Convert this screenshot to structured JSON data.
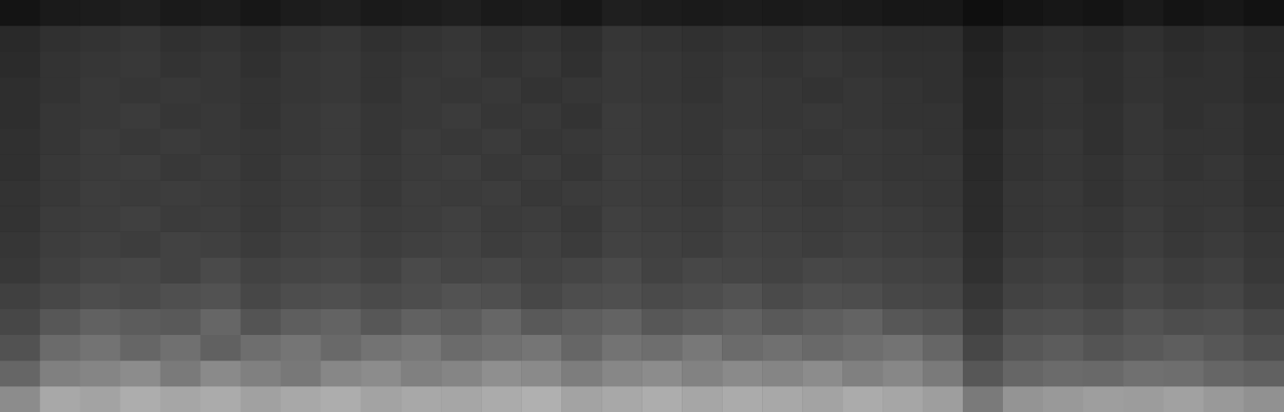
{
  "chart_data": {
    "type": "heatmap",
    "tick_labels": false,
    "grid": false,
    "zlim": [
      0,
      100
    ],
    "cells": [
      [
        55,
        66,
        64,
        68,
        65,
        67,
        63,
        66,
        68,
        64,
        66,
        65,
        67,
        69,
        64,
        66,
        68,
        65,
        67,
        66,
        64,
        67,
        65,
        62,
        48,
        58,
        60,
        62,
        61,
        63,
        60,
        57
      ],
      [
        40,
        50,
        52,
        55,
        48,
        54,
        50,
        47,
        53,
        55,
        50,
        52,
        56,
        54,
        49,
        53,
        55,
        51,
        54,
        52,
        55,
        50,
        53,
        48,
        34,
        40,
        42,
        41,
        44,
        43,
        40,
        38
      ],
      [
        32,
        42,
        45,
        40,
        44,
        38,
        43,
        46,
        41,
        45,
        47,
        42,
        44,
        46,
        40,
        45,
        43,
        47,
        42,
        44,
        41,
        43,
        45,
        40,
        28,
        34,
        36,
        33,
        35,
        37,
        34,
        31
      ],
      [
        28,
        34,
        38,
        36,
        35,
        40,
        33,
        37,
        39,
        34,
        38,
        36,
        40,
        35,
        37,
        39,
        34,
        36,
        38,
        35,
        37,
        39,
        34,
        32,
        24,
        30,
        31,
        29,
        32,
        30,
        31,
        28
      ],
      [
        25,
        28,
        30,
        29,
        31,
        32,
        28,
        30,
        31,
        29,
        30,
        32,
        31,
        28,
        30,
        31,
        29,
        30,
        32,
        29,
        31,
        30,
        28,
        27,
        21,
        26,
        27,
        25,
        28,
        26,
        27,
        24
      ],
      [
        22,
        25,
        27,
        28,
        26,
        29,
        26,
        27,
        28,
        26,
        29,
        27,
        28,
        26,
        27,
        29,
        26,
        28,
        27,
        26,
        28,
        27,
        26,
        25,
        19,
        24,
        25,
        23,
        26,
        24,
        25,
        22
      ],
      [
        21,
        24,
        25,
        24,
        26,
        25,
        23,
        25,
        26,
        24,
        25,
        26,
        24,
        25,
        23,
        26,
        25,
        24,
        26,
        25,
        24,
        25,
        24,
        23,
        18,
        22,
        23,
        22,
        24,
        22,
        23,
        21
      ],
      [
        20,
        23,
        24,
        25,
        23,
        24,
        22,
        24,
        25,
        23,
        24,
        25,
        23,
        24,
        22,
        25,
        24,
        23,
        25,
        24,
        23,
        24,
        23,
        22,
        17,
        21,
        22,
        21,
        23,
        21,
        22,
        20
      ],
      [
        20,
        22,
        24,
        23,
        24,
        23,
        22,
        23,
        24,
        22,
        24,
        23,
        24,
        22,
        23,
        24,
        23,
        22,
        24,
        23,
        22,
        23,
        22,
        21,
        17,
        21,
        22,
        20,
        22,
        21,
        21,
        19
      ],
      [
        19,
        22,
        23,
        24,
        22,
        23,
        21,
        23,
        24,
        22,
        23,
        24,
        22,
        23,
        21,
        24,
        23,
        22,
        23,
        22,
        23,
        22,
        21,
        21,
        16,
        20,
        21,
        20,
        22,
        20,
        21,
        19
      ],
      [
        19,
        21,
        23,
        22,
        23,
        22,
        21,
        22,
        23,
        21,
        23,
        22,
        23,
        21,
        22,
        23,
        22,
        21,
        23,
        22,
        21,
        22,
        21,
        20,
        16,
        20,
        21,
        19,
        21,
        20,
        20,
        18
      ],
      [
        18,
        21,
        22,
        23,
        21,
        22,
        20,
        22,
        23,
        21,
        22,
        23,
        21,
        22,
        20,
        23,
        22,
        21,
        22,
        21,
        22,
        21,
        20,
        20,
        15,
        19,
        20,
        19,
        21,
        19,
        20,
        18
      ],
      [
        18,
        20,
        22,
        21,
        22,
        21,
        20,
        21,
        22,
        20,
        22,
        21,
        22,
        20,
        21,
        22,
        21,
        20,
        22,
        21,
        20,
        21,
        20,
        19,
        15,
        19,
        20,
        18,
        20,
        19,
        19,
        17
      ],
      [
        17,
        20,
        21,
        22,
        20,
        21,
        19,
        21,
        22,
        20,
        21,
        22,
        20,
        21,
        19,
        22,
        21,
        20,
        21,
        20,
        21,
        20,
        19,
        19,
        14,
        18,
        19,
        18,
        20,
        18,
        19,
        17
      ],
      [
        16,
        19,
        20,
        21,
        19,
        20,
        18,
        20,
        21,
        19,
        20,
        21,
        19,
        20,
        18,
        21,
        20,
        19,
        20,
        19,
        20,
        19,
        18,
        18,
        13,
        17,
        18,
        17,
        19,
        17,
        18,
        16
      ],
      [
        8,
        10,
        11,
        12,
        10,
        11,
        9,
        11,
        12,
        10,
        11,
        12,
        10,
        11,
        9,
        12,
        11,
        10,
        11,
        10,
        11,
        10,
        9,
        9,
        6,
        8,
        9,
        8,
        10,
        8,
        9,
        7
      ]
    ]
  }
}
